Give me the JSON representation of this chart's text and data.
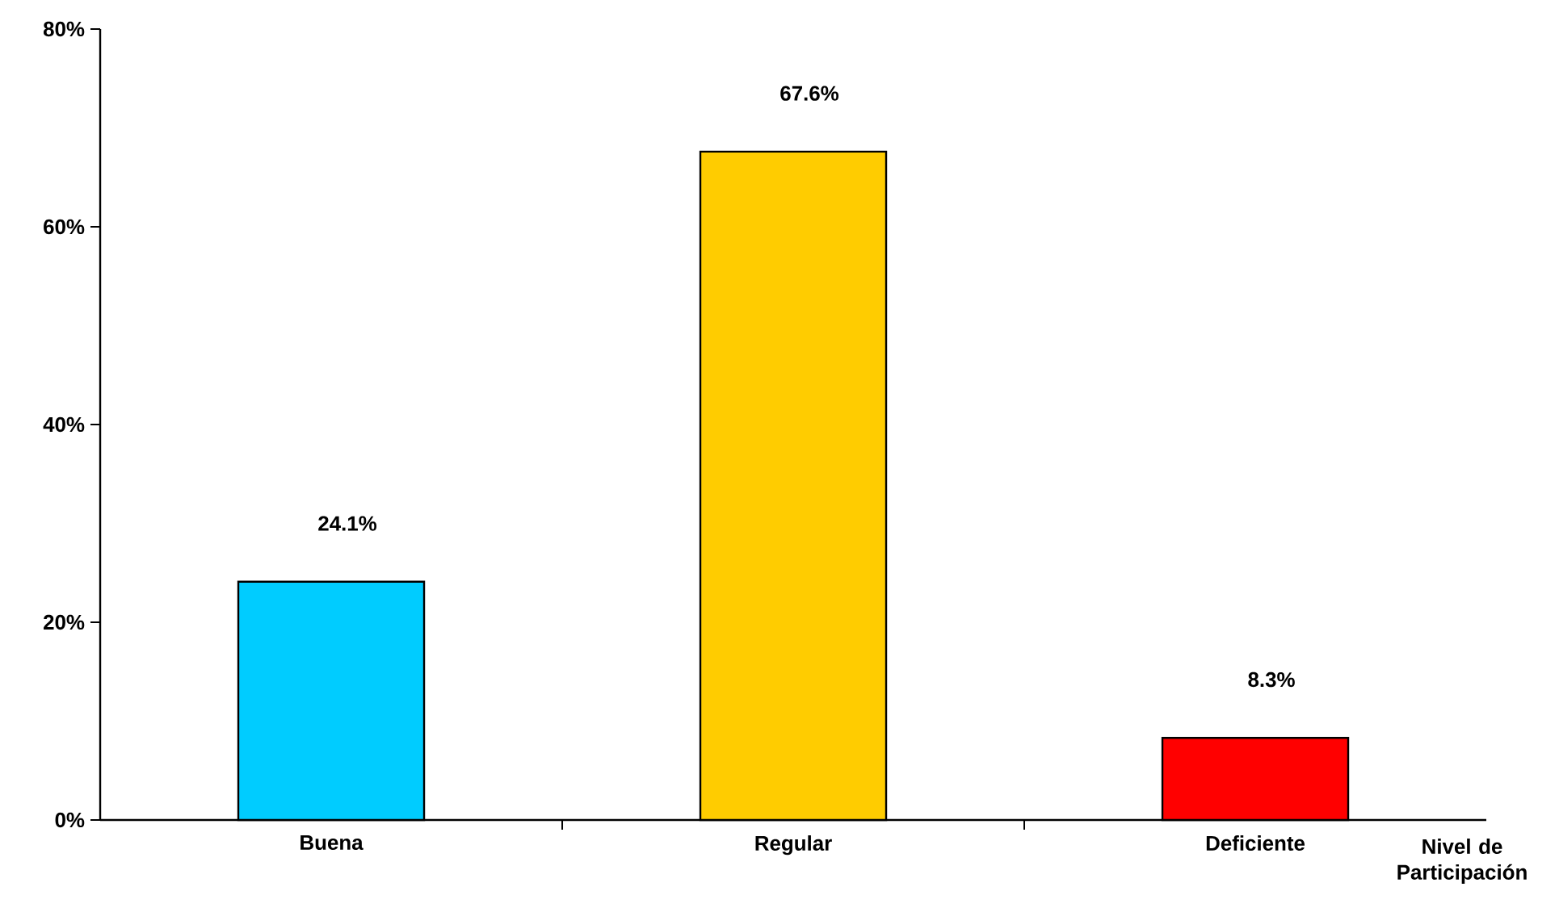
{
  "chart_data": {
    "type": "bar",
    "categories": [
      "Buena",
      "Regular",
      "Deficiente"
    ],
    "values": [
      24.1,
      67.6,
      8.3
    ],
    "colors": [
      "#00ccff",
      "#ffcc00",
      "#ff0000"
    ],
    "value_labels": [
      "24.1%",
      "67.6%",
      "8.3%"
    ],
    "xlabel": "Nivel de Participación",
    "ylim": [
      0,
      80
    ],
    "yticks": [
      {
        "value": 0,
        "label": "0%"
      },
      {
        "value": 20,
        "label": "20%"
      },
      {
        "value": 40,
        "label": "40%"
      },
      {
        "value": 60,
        "label": "60%"
      },
      {
        "value": 80,
        "label": "80%"
      }
    ]
  }
}
